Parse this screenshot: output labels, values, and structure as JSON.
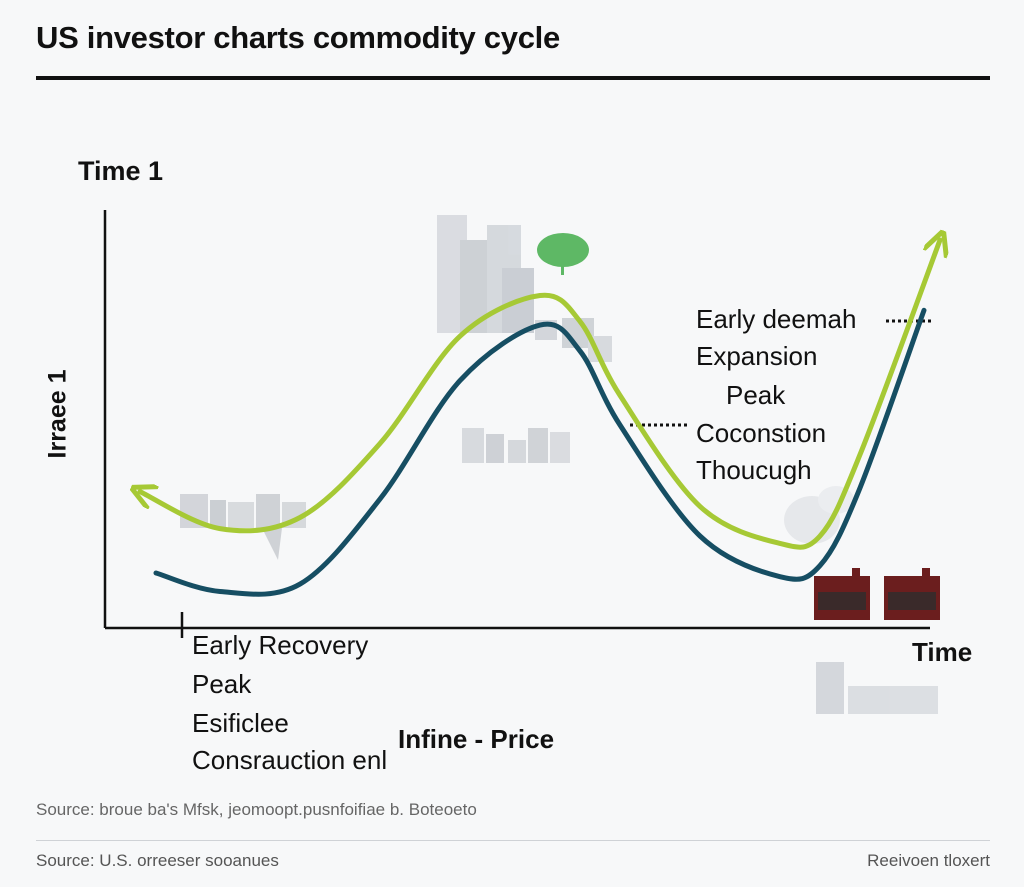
{
  "header": {
    "title": "US investor charts commodity cycle"
  },
  "chart_data": {
    "type": "line",
    "title": "US investor charts commodity cycle",
    "ylabel_top": "Time 1",
    "ylabel_side": "Irraee 1",
    "xlabel": "Time",
    "legend_text": "Infine   - Price",
    "grid": false,
    "series": [
      {
        "color": "#a6c935",
        "x": [
          0,
          0.1,
          0.2,
          0.3,
          0.4,
          0.5,
          0.55,
          0.6,
          0.7,
          0.8,
          0.85,
          0.9,
          1.0
        ],
        "values": [
          0.32,
          0.22,
          0.25,
          0.45,
          0.74,
          0.85,
          0.78,
          0.58,
          0.28,
          0.18,
          0.2,
          0.42,
          1.0
        ]
      },
      {
        "color": "#164e63",
        "x": [
          0.02,
          0.1,
          0.2,
          0.3,
          0.4,
          0.5,
          0.55,
          0.6,
          0.7,
          0.8,
          0.85,
          0.9,
          0.98
        ],
        "values": [
          0.1,
          0.05,
          0.07,
          0.3,
          0.62,
          0.77,
          0.7,
          0.5,
          0.2,
          0.09,
          0.12,
          0.33,
          0.81
        ]
      }
    ],
    "phases_lower": [
      "Early Recovery",
      "Peak",
      "Esificlee",
      "Consrauction enl"
    ],
    "phases_right": [
      "Early deemah",
      "Expansion",
      "Peak",
      "Coconstion",
      "Thoucugh"
    ]
  },
  "footer": {
    "source_line_1": "Source: broue ba's Mfsk, jeomoopt.pusnfoifiae b. Boteoeto",
    "source_line_2": "Source: U.S. orreeser sooanues",
    "credit": "Reeivoen tloxert"
  },
  "colors": {
    "accent_green": "#a6c935",
    "accent_navy": "#164e63",
    "building_gray": "#cfd3d8",
    "factory_red": "#6b1e1e"
  }
}
